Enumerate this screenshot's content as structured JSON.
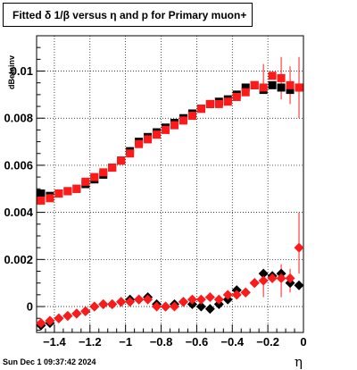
{
  "title": "Fitted δ 1/β versus η and p for Primary muon+",
  "timestamp": "Sun Dec  1 09:37:42 2024",
  "chart_data": {
    "type": "scatter",
    "title": "Fitted δ 1/β versus η and p for Primary muon+",
    "xlabel": "η",
    "ylabel": "dBetainv",
    "xlim": [
      -1.5,
      0.0
    ],
    "ylim": [
      -0.0011,
      0.0115
    ],
    "grid": true,
    "x_ticks": [
      -1.4,
      -1.2,
      -1.0,
      -0.8,
      -0.6,
      -0.4,
      -0.2,
      0.0
    ],
    "x_tick_labels": [
      "−1.4",
      "−1.2",
      "−1",
      "−0.8",
      "−0.6",
      "−0.4",
      "−0.2",
      "0"
    ],
    "y_ticks": [
      0.0,
      0.002,
      0.004,
      0.006,
      0.008,
      0.01
    ],
    "y_tick_labels": [
      "0",
      "0.002",
      "0.004",
      "0.006",
      "0.008",
      "0.01"
    ],
    "x": [
      -1.475,
      -1.425,
      -1.375,
      -1.325,
      -1.275,
      -1.225,
      -1.175,
      -1.125,
      -1.075,
      -1.025,
      -0.975,
      -0.925,
      -0.875,
      -0.825,
      -0.775,
      -0.725,
      -0.675,
      -0.625,
      -0.575,
      -0.525,
      -0.475,
      -0.425,
      -0.375,
      -0.325,
      -0.275,
      -0.225,
      -0.175,
      -0.125,
      -0.075,
      -0.025
    ],
    "series": [
      {
        "marker": "square",
        "color": "#000000",
        "values": [
          0.0048,
          0.0047,
          0.0048,
          0.0049,
          0.005,
          0.0052,
          0.0054,
          0.0056,
          0.0059,
          0.0062,
          0.0066,
          0.007,
          0.0072,
          0.0074,
          0.0076,
          0.0078,
          0.008,
          0.0082,
          0.0084,
          0.0086,
          0.0087,
          0.0088,
          0.009,
          0.0093,
          0.0094,
          0.0092,
          0.0094,
          0.0093,
          0.0092,
          0.0093
        ]
      },
      {
        "marker": "square",
        "color": "#ff1a1a",
        "values": [
          0.0045,
          0.0046,
          0.0048,
          0.0049,
          0.005,
          0.0053,
          0.0055,
          0.0057,
          0.0059,
          0.0062,
          0.0065,
          0.0069,
          0.0071,
          0.0073,
          0.0075,
          0.0077,
          0.0079,
          0.0081,
          0.0084,
          0.0086,
          0.0086,
          0.0087,
          0.0089,
          0.0091,
          0.0094,
          0.0093,
          0.0098,
          0.0097,
          0.0094,
          0.0093
        ]
      },
      {
        "marker": "diamond",
        "color": "#000000",
        "values": [
          -0.0008,
          -0.0007,
          -0.0005,
          -0.0004,
          -0.0003,
          -0.0002,
          0.0,
          0.0001,
          0.0001,
          0.0002,
          0.0003,
          0.0003,
          0.0004,
          0.0001,
          0.0,
          0.0001,
          0.0002,
          0.0001,
          0.0,
          -0.0001,
          0.0001,
          0.0003,
          0.0007,
          0.0006,
          0.001,
          0.0014,
          0.0013,
          0.0014,
          0.001,
          0.0009
        ]
      },
      {
        "marker": "diamond",
        "color": "#ff1a1a",
        "values": [
          -0.0007,
          -0.0006,
          -0.0005,
          -0.0004,
          -0.0003,
          -0.0002,
          0.0,
          0.0001,
          0.0001,
          0.0002,
          0.0002,
          0.0003,
          0.0003,
          0.0,
          0.0,
          0.0,
          0.0002,
          0.0003,
          0.0003,
          0.0004,
          0.0003,
          0.0005,
          0.0005,
          0.0006,
          0.001,
          0.0011,
          0.0012,
          0.0012,
          0.0012,
          0.0025
        ]
      }
    ],
    "error_bars": [
      {
        "series": 1,
        "index": 25,
        "low": 0.0091,
        "high": 0.0103
      },
      {
        "series": 1,
        "index": 27,
        "low": 0.0088,
        "high": 0.0106
      },
      {
        "series": 1,
        "index": 28,
        "low": 0.0086,
        "high": 0.0102
      },
      {
        "series": 1,
        "index": 29,
        "low": 0.008,
        "high": 0.0106
      },
      {
        "series": 3,
        "index": 25,
        "low": 0.0004,
        "high": 0.0016
      },
      {
        "series": 3,
        "index": 27,
        "low": 0.0004,
        "high": 0.0018
      },
      {
        "series": 3,
        "index": 28,
        "low": 0.0006,
        "high": 0.0016
      },
      {
        "series": 3,
        "index": 29,
        "low": 0.0014,
        "high": 0.004
      }
    ]
  }
}
